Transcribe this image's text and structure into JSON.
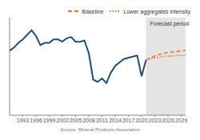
{
  "chart_data": {
    "type": "line",
    "annotation": "Forecast period",
    "source": "Source: Mineral Products Association",
    "x": [
      1990,
      1991,
      1992,
      1993,
      1994,
      1995,
      1996,
      1997,
      1998,
      1999,
      2000,
      2001,
      2002,
      2003,
      2004,
      2005,
      2006,
      2007,
      2008,
      2009,
      2010,
      2011,
      2012,
      2013,
      2014,
      2015,
      2016,
      2017,
      2018,
      2019,
      2020,
      2021,
      2022,
      2023,
      2024,
      2025,
      2026,
      2027,
      2028,
      2029,
      2030
    ],
    "series": [
      {
        "color": "#1f4e79",
        "line_style": "solid",
        "values": [
          262,
          268,
          276,
          282,
          290,
          298,
          288,
          272,
          276,
          276,
          282,
          282,
          278,
          284,
          286,
          278,
          278,
          280,
          258,
          212,
          208,
          214,
          206,
          224,
          236,
          242,
          248,
          250,
          252,
          254,
          218,
          246,
          null,
          null,
          null,
          null,
          null,
          null,
          null,
          null,
          null
        ]
      },
      {
        "name": "Baseline",
        "color": "#e8772e",
        "line_style": "dashed",
        "values": [
          null,
          null,
          null,
          null,
          null,
          null,
          null,
          null,
          null,
          null,
          null,
          null,
          null,
          null,
          null,
          null,
          null,
          null,
          null,
          null,
          null,
          null,
          null,
          null,
          null,
          null,
          null,
          null,
          null,
          null,
          null,
          246,
          250,
          253,
          256,
          258,
          259,
          260,
          261,
          262,
          263
        ]
      },
      {
        "name": "Lower aggregates intensity",
        "color": "#e8772e",
        "line_style": "dotted",
        "values": [
          null,
          null,
          null,
          null,
          null,
          null,
          null,
          null,
          null,
          null,
          null,
          null,
          null,
          null,
          null,
          null,
          null,
          null,
          null,
          null,
          null,
          null,
          null,
          null,
          null,
          null,
          null,
          null,
          null,
          null,
          null,
          246,
          248,
          250,
          251,
          252,
          253,
          253,
          254,
          254,
          255
        ]
      }
    ],
    "forecast_period": [
      2021,
      2030
    ],
    "xlim": [
      1990,
      2030
    ],
    "xticks": [
      1993,
      1996,
      1999,
      2002,
      2005,
      2008,
      2011,
      2014,
      2017,
      2020,
      2023,
      2026,
      2029
    ],
    "ylim": [
      150,
      320
    ],
    "grid": false,
    "tick_labels": "x"
  }
}
